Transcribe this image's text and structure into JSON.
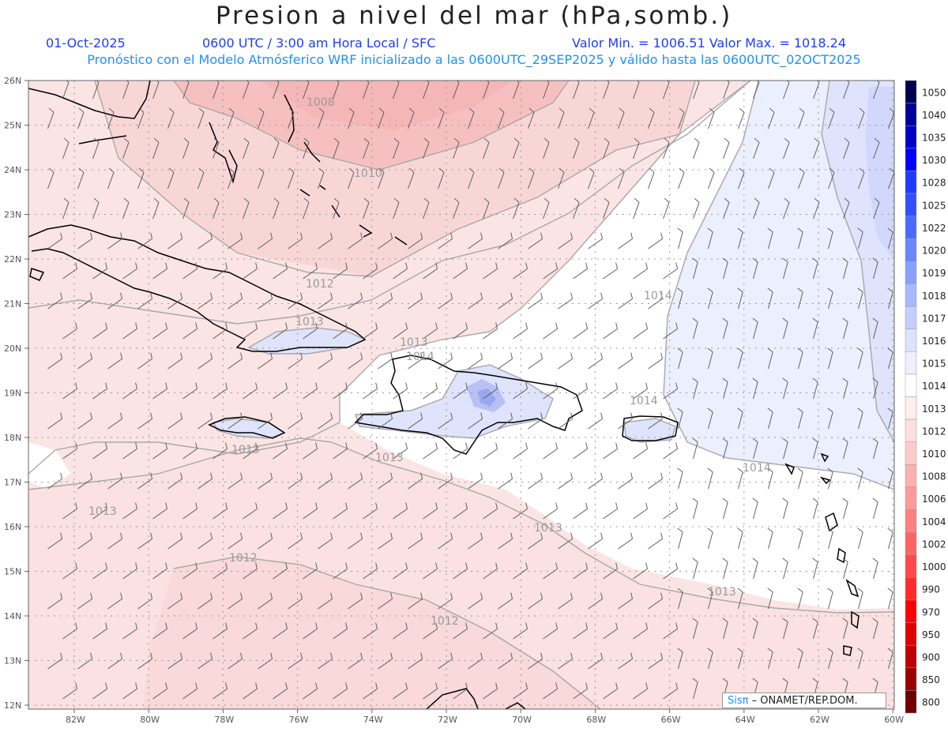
{
  "header": {
    "title": "Presion a nivel del mar (hPa,somb.)",
    "date": "01-Oct-2025",
    "time": "0600 UTC / 3:00 am Hora Local / SFC",
    "min_max": "Valor Min. = 1006.51  Valor Max. = 1018.24",
    "model_info": "Pronóstico con el Modelo Atmósferico WRF inicializado a las 0600UTC_29SEP2025 y válido hasta las  0600UTC_02OCT2025"
  },
  "map": {
    "lat_labels": [
      "26N",
      "25N",
      "24N",
      "23N",
      "22N",
      "21N",
      "20N",
      "19N",
      "18N",
      "17N",
      "16N",
      "15N",
      "14N",
      "13N",
      "12N"
    ],
    "lon_labels": [
      "82W",
      "80W",
      "78W",
      "76W",
      "74W",
      "72W",
      "70W",
      "68W",
      "66W",
      "64W",
      "62W",
      "60W"
    ],
    "isobar_labels": [
      {
        "text": "1008"
      },
      {
        "text": "1010"
      },
      {
        "text": "1012"
      },
      {
        "text": "1013"
      },
      {
        "text": "1014"
      },
      {
        "text": "1013"
      },
      {
        "text": "1014"
      },
      {
        "text": "1013"
      },
      {
        "text": "1014"
      },
      {
        "text": "1013"
      },
      {
        "text": "1013"
      },
      {
        "text": "1012"
      },
      {
        "text": "1013"
      },
      {
        "text": "1012"
      },
      {
        "text": "1014"
      },
      {
        "text": "1013"
      }
    ]
  },
  "colorbar": {
    "labels": [
      "1050",
      "1040",
      "1035",
      "1030",
      "1028",
      "1025",
      "1022",
      "1020",
      "1019",
      "1018",
      "1017",
      "1016",
      "1015",
      "1014",
      "1013",
      "1012",
      "1010",
      "1008",
      "1006",
      "1004",
      "1002",
      "1000",
      "990",
      "970",
      "950",
      "900",
      "850",
      "800"
    ],
    "colors": [
      "#000050",
      "#00009a",
      "#0000c8",
      "#0000ff",
      "#1e3cff",
      "#3050ff",
      "#4a6aff",
      "#6b86ff",
      "#8aa0ff",
      "#a8b8ff",
      "#c4ceff",
      "#dde3ff",
      "#eef0ff",
      "#ffffff",
      "#ffeeee",
      "#ffdede",
      "#ffcaca",
      "#ffb0b0",
      "#ff9a9a",
      "#ff8080",
      "#ff6464",
      "#ff4848",
      "#ff2a2a",
      "#ff0000",
      "#e00000",
      "#bf0000",
      "#9a0000",
      "#700000"
    ]
  },
  "credit": {
    "sis": "Sisπ",
    "org": " – ONAMET/REP.DOM."
  }
}
